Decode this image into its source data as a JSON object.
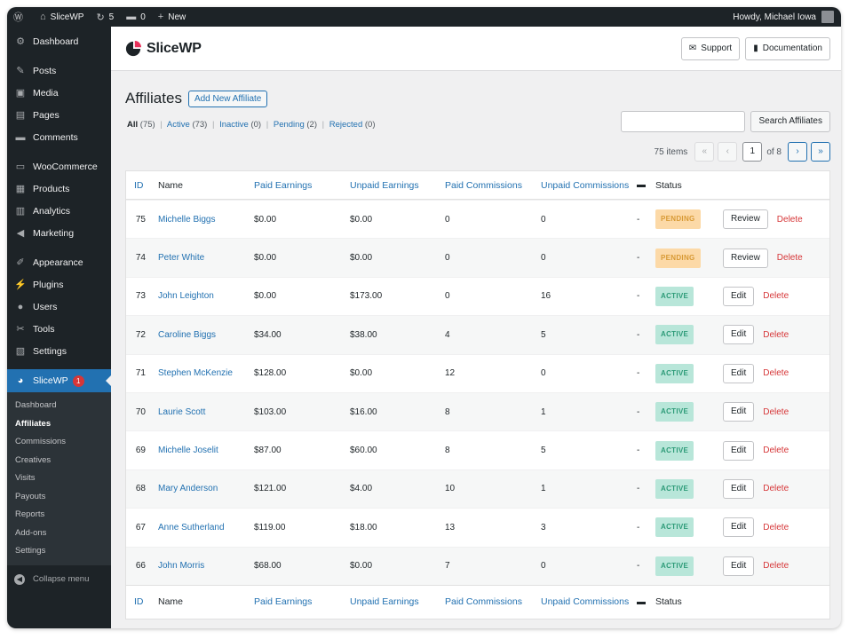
{
  "adminbar": {
    "site_name": "SliceWP",
    "updates": "5",
    "comments": "0",
    "new_label": "New",
    "howdy": "Howdy, Michael Iowa"
  },
  "sidebar": {
    "items": [
      {
        "icon": "dashboard-icon",
        "glyph": "⚙",
        "label": "Dashboard"
      },
      {
        "icon": "posts-icon",
        "glyph": "✎",
        "label": "Posts"
      },
      {
        "icon": "media-icon",
        "glyph": "▣",
        "label": "Media"
      },
      {
        "icon": "pages-icon",
        "glyph": "▤",
        "label": "Pages"
      },
      {
        "icon": "comments-icon",
        "glyph": "▬",
        "label": "Comments"
      },
      {
        "icon": "woocommerce-icon",
        "glyph": "▭",
        "label": "WooCommerce"
      },
      {
        "icon": "products-icon",
        "glyph": "▦",
        "label": "Products"
      },
      {
        "icon": "analytics-icon",
        "glyph": "▥",
        "label": "Analytics"
      },
      {
        "icon": "marketing-icon",
        "glyph": "◀",
        "label": "Marketing"
      },
      {
        "icon": "appearance-icon",
        "glyph": "✐",
        "label": "Appearance"
      },
      {
        "icon": "plugins-icon",
        "glyph": "⚡",
        "label": "Plugins"
      },
      {
        "icon": "users-icon",
        "glyph": "●",
        "label": "Users"
      },
      {
        "icon": "tools-icon",
        "glyph": "✂",
        "label": "Tools"
      },
      {
        "icon": "settings-icon",
        "glyph": "▧",
        "label": "Settings"
      }
    ],
    "current": {
      "label": "SliceWP",
      "badge": "1"
    },
    "submenu": [
      "Dashboard",
      "Affiliates",
      "Commissions",
      "Creatives",
      "Visits",
      "Payouts",
      "Reports",
      "Add-ons",
      "Settings"
    ],
    "submenu_active": "Affiliates",
    "collapse_label": "Collapse menu"
  },
  "header": {
    "logo_text": "SliceWP",
    "support_label": "Support",
    "docs_label": "Documentation"
  },
  "page": {
    "title": "Affiliates",
    "add_new_label": "Add New Affiliate",
    "filters": {
      "all": "All",
      "all_count": "(75)",
      "active": "Active",
      "active_count": "(73)",
      "inactive": "Inactive",
      "inactive_count": "(0)",
      "pending": "Pending",
      "pending_count": "(2)",
      "rejected": "Rejected",
      "rejected_count": "(0)"
    },
    "search_value": "",
    "search_button": "Search Affiliates",
    "pagination": {
      "items": "75 items",
      "first": "«",
      "prev": "‹",
      "current": "1",
      "of": "of 8",
      "next": "›",
      "last": "»"
    }
  },
  "table": {
    "columns": [
      "ID",
      "Name",
      "Paid Earnings",
      "Unpaid Earnings",
      "Paid Commissions",
      "Unpaid Commissions",
      "Status"
    ],
    "rows": [
      {
        "id": "75",
        "name": "Michelle Biggs",
        "paid": "$0.00",
        "unpaid": "$0.00",
        "pc": "0",
        "uc": "0",
        "note": "-",
        "status": "PENDING",
        "status_type": "pending",
        "action": "Review",
        "delete": "Delete"
      },
      {
        "id": "74",
        "name": "Peter White",
        "paid": "$0.00",
        "unpaid": "$0.00",
        "pc": "0",
        "uc": "0",
        "note": "-",
        "status": "PENDING",
        "status_type": "pending",
        "action": "Review",
        "delete": "Delete"
      },
      {
        "id": "73",
        "name": "John Leighton",
        "paid": "$0.00",
        "unpaid": "$173.00",
        "pc": "0",
        "uc": "16",
        "note": "-",
        "status": "ACTIVE",
        "status_type": "active",
        "action": "Edit",
        "delete": "Delete"
      },
      {
        "id": "72",
        "name": "Caroline Biggs",
        "paid": "$34.00",
        "unpaid": "$38.00",
        "pc": "4",
        "uc": "5",
        "note": "-",
        "status": "ACTIVE",
        "status_type": "active",
        "action": "Edit",
        "delete": "Delete"
      },
      {
        "id": "71",
        "name": "Stephen McKenzie",
        "paid": "$128.00",
        "unpaid": "$0.00",
        "pc": "12",
        "uc": "0",
        "note": "-",
        "status": "ACTIVE",
        "status_type": "active",
        "action": "Edit",
        "delete": "Delete"
      },
      {
        "id": "70",
        "name": "Laurie Scott",
        "paid": "$103.00",
        "unpaid": "$16.00",
        "pc": "8",
        "uc": "1",
        "note": "-",
        "status": "ACTIVE",
        "status_type": "active",
        "action": "Edit",
        "delete": "Delete"
      },
      {
        "id": "69",
        "name": "Michelle Joselit",
        "paid": "$87.00",
        "unpaid": "$60.00",
        "pc": "8",
        "uc": "5",
        "note": "-",
        "status": "ACTIVE",
        "status_type": "active",
        "action": "Edit",
        "delete": "Delete"
      },
      {
        "id": "68",
        "name": "Mary Anderson",
        "paid": "$121.00",
        "unpaid": "$4.00",
        "pc": "10",
        "uc": "1",
        "note": "-",
        "status": "ACTIVE",
        "status_type": "active",
        "action": "Edit",
        "delete": "Delete"
      },
      {
        "id": "67",
        "name": "Anne Sutherland",
        "paid": "$119.00",
        "unpaid": "$18.00",
        "pc": "13",
        "uc": "3",
        "note": "-",
        "status": "ACTIVE",
        "status_type": "active",
        "action": "Edit",
        "delete": "Delete"
      },
      {
        "id": "66",
        "name": "John Morris",
        "paid": "$68.00",
        "unpaid": "$0.00",
        "pc": "7",
        "uc": "0",
        "note": "-",
        "status": "ACTIVE",
        "status_type": "active",
        "action": "Edit",
        "delete": "Delete"
      }
    ]
  },
  "colors": {
    "accent": "#2271b1",
    "sidebar_bg": "#1d2327",
    "pending_bg": "#fcd9a7",
    "active_bg": "#b8e6d9",
    "delete": "#d63638"
  }
}
